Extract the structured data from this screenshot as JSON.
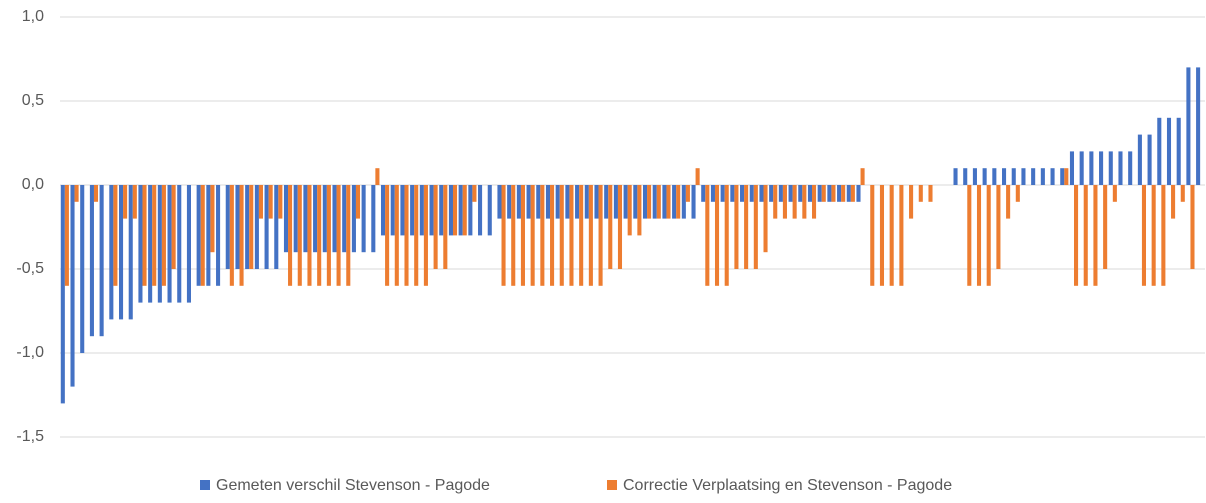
{
  "chart_data": {
    "type": "bar",
    "categories": [
      null,
      null,
      null,
      null,
      null,
      null,
      null,
      null,
      null,
      null,
      null,
      null,
      null,
      null,
      null,
      null,
      null,
      null,
      null,
      null,
      null,
      null,
      null,
      null,
      null,
      null,
      null,
      null,
      null,
      null,
      null,
      null,
      null,
      null,
      null,
      null,
      null,
      null,
      null,
      null,
      null,
      null,
      null,
      null,
      null,
      null,
      null,
      null,
      null,
      null,
      null,
      null,
      null,
      null,
      null,
      null,
      null,
      null,
      null,
      null,
      null,
      null,
      null,
      null,
      null,
      null,
      null,
      null,
      null,
      null,
      null,
      null,
      null,
      null,
      null,
      null,
      null,
      null,
      null,
      null,
      null,
      null,
      null,
      null,
      null,
      null,
      null,
      null,
      null,
      null,
      null,
      null,
      null,
      null,
      null,
      null,
      null,
      null,
      null,
      null,
      null,
      null,
      null,
      null,
      null,
      null,
      null,
      null,
      null,
      null,
      null,
      null,
      null,
      null,
      null,
      null,
      null,
      null
    ],
    "series": [
      {
        "name": "Gemeten verschil Stevenson - Pagode",
        "color": "#4472c4",
        "values": [
          -1.3,
          -1.2,
          -1.0,
          -0.9,
          -0.9,
          -0.8,
          -0.8,
          -0.8,
          -0.7,
          -0.7,
          -0.7,
          -0.7,
          -0.7,
          -0.7,
          -0.6,
          -0.6,
          -0.6,
          -0.5,
          -0.5,
          -0.5,
          -0.5,
          -0.5,
          -0.5,
          -0.4,
          -0.4,
          -0.4,
          -0.4,
          -0.4,
          -0.4,
          -0.4,
          -0.4,
          -0.4,
          -0.4,
          -0.3,
          -0.3,
          -0.3,
          -0.3,
          -0.3,
          -0.3,
          -0.3,
          -0.3,
          -0.3,
          -0.3,
          -0.3,
          -0.3,
          -0.2,
          -0.2,
          -0.2,
          -0.2,
          -0.2,
          -0.2,
          -0.2,
          -0.2,
          -0.2,
          -0.2,
          -0.2,
          -0.2,
          -0.2,
          -0.2,
          -0.2,
          -0.2,
          -0.2,
          -0.2,
          -0.2,
          -0.2,
          -0.2,
          -0.1,
          -0.1,
          -0.1,
          -0.1,
          -0.1,
          -0.1,
          -0.1,
          -0.1,
          -0.1,
          -0.1,
          -0.1,
          -0.1,
          -0.1,
          -0.1,
          -0.1,
          -0.1,
          -0.1,
          0,
          0,
          0,
          0,
          0,
          0,
          0,
          0,
          0,
          0.1,
          0.1,
          0.1,
          0.1,
          0.1,
          0.1,
          0.1,
          0.1,
          0.1,
          0.1,
          0.1,
          0.1,
          0.2,
          0.2,
          0.2,
          0.2,
          0.2,
          0.2,
          0.2,
          0.3,
          0.3,
          0.4,
          0.4,
          0.4,
          0.7,
          0.7
        ]
      },
      {
        "name": "Correctie Verplaatsing  en Stevenson - Pagode",
        "color": "#ed7d31",
        "values": [
          -0.6,
          -0.1,
          0,
          -0.1,
          0,
          -0.6,
          -0.2,
          -0.2,
          -0.6,
          -0.6,
          -0.6,
          -0.5,
          0,
          0,
          -0.6,
          -0.4,
          0,
          -0.6,
          -0.6,
          -0.5,
          -0.2,
          -0.2,
          -0.2,
          -0.6,
          -0.6,
          -0.6,
          -0.6,
          -0.6,
          -0.6,
          -0.6,
          -0.2,
          0,
          0.1,
          -0.6,
          -0.6,
          -0.6,
          -0.6,
          -0.6,
          -0.5,
          -0.5,
          -0.3,
          -0.3,
          -0.1,
          0,
          0,
          -0.6,
          -0.6,
          -0.6,
          -0.6,
          -0.6,
          -0.6,
          -0.6,
          -0.6,
          -0.6,
          -0.6,
          -0.6,
          -0.5,
          -0.5,
          -0.3,
          -0.3,
          -0.2,
          -0.2,
          -0.2,
          -0.2,
          -0.1,
          0.1,
          -0.6,
          -0.6,
          -0.6,
          -0.5,
          -0.5,
          -0.5,
          -0.4,
          -0.2,
          -0.2,
          -0.2,
          -0.2,
          -0.2,
          -0.1,
          -0.1,
          -0.1,
          -0.1,
          0.1,
          -0.6,
          -0.6,
          -0.6,
          -0.6,
          -0.2,
          -0.1,
          -0.1,
          0,
          0,
          0,
          -0.6,
          -0.6,
          -0.6,
          -0.5,
          -0.2,
          -0.1,
          0,
          0,
          0,
          0,
          0.1,
          -0.6,
          -0.6,
          -0.6,
          -0.5,
          -0.1,
          0,
          0,
          -0.6,
          -0.6,
          -0.6,
          -0.2,
          -0.1,
          -0.5,
          0
        ]
      }
    ],
    "ylim": [
      -1.5,
      1.0
    ],
    "yticks": [
      {
        "value": 1.0,
        "label": "1,0"
      },
      {
        "value": 0.5,
        "label": "0,5"
      },
      {
        "value": 0,
        "label": "0,0"
      },
      {
        "value": -0.5,
        "label": "-0,5"
      },
      {
        "value": -1.0,
        "label": "-1,0"
      },
      {
        "value": -1.5,
        "label": "-1,5"
      }
    ],
    "grid": true,
    "legend": "bottom"
  }
}
